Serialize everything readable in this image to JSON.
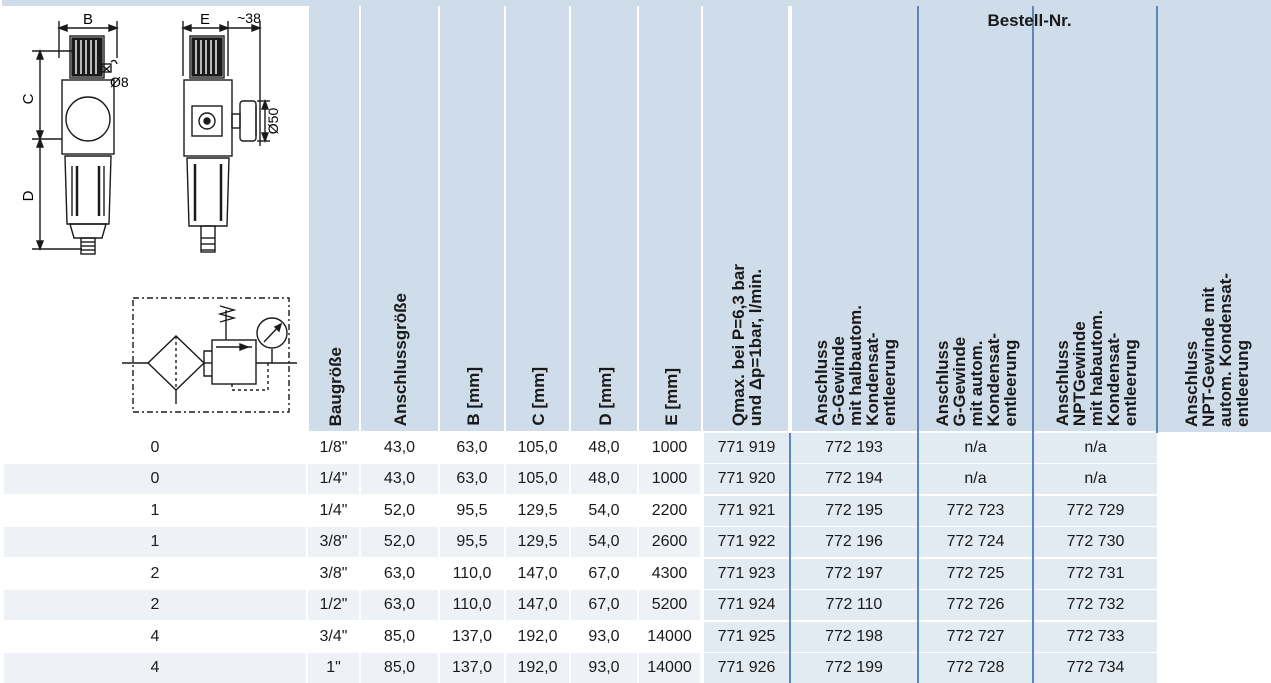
{
  "diagram": {
    "dim_b": "B",
    "dim_c": "C",
    "dim_d": "D",
    "dim_e": "E",
    "dim_38": "~38",
    "dim_d8": "Ø8",
    "dim_d50": "Ø50"
  },
  "headers": {
    "baugroesse": "Baugröße",
    "anschlussgroesse": "Anschlussgröße",
    "b": "B [mm]",
    "c": "C [mm]",
    "d": "D [mm]",
    "e": "E [mm]",
    "qmax": "Qmax. bei P=6,3 bar\nund Δp=1bar, l/min.",
    "bestell": "Bestell-Nr.",
    "order_g_half": "Anschluss\nG-Gewinde\nmit halbautom.\nKondensat-\nentleerung",
    "order_g_auto": "Anschluss\nG-Gewinde\nmit autom.\nKondensat-\nentleerung",
    "order_npt_half": "Anschluss\nNPTGewinde\nmit habautom.\nKondensat-\nentleerung",
    "order_npt_auto": "Anschluss\nNPT-Gewinde mit\nautom. Kondensat-\nentleerung"
  },
  "rows": [
    {
      "size": "0",
      "port": "1/8\"",
      "b": "43,0",
      "c": "63,0",
      "d": "105,0",
      "e": "48,0",
      "q": "1000",
      "o1": "771 919",
      "o2": "772 193",
      "o3": "n/a",
      "o4": "n/a"
    },
    {
      "size": "0",
      "port": "1/4\"",
      "b": "43,0",
      "c": "63,0",
      "d": "105,0",
      "e": "48,0",
      "q": "1000",
      "o1": "771 920",
      "o2": "772 194",
      "o3": "n/a",
      "o4": "n/a"
    },
    {
      "size": "1",
      "port": "1/4\"",
      "b": "52,0",
      "c": "95,5",
      "d": "129,5",
      "e": "54,0",
      "q": "2200",
      "o1": "771 921",
      "o2": "772 195",
      "o3": "772 723",
      "o4": "772 729"
    },
    {
      "size": "1",
      "port": "3/8\"",
      "b": "52,0",
      "c": "95,5",
      "d": "129,5",
      "e": "54,0",
      "q": "2600",
      "o1": "771 922",
      "o2": "772 196",
      "o3": "772 724",
      "o4": "772 730"
    },
    {
      "size": "2",
      "port": "3/8\"",
      "b": "63,0",
      "c": "110,0",
      "d": "147,0",
      "e": "67,0",
      "q": "4300",
      "o1": "771 923",
      "o2": "772 197",
      "o3": "772 725",
      "o4": "772 731"
    },
    {
      "size": "2",
      "port": "1/2\"",
      "b": "63,0",
      "c": "110,0",
      "d": "147,0",
      "e": "67,0",
      "q": "5200",
      "o1": "771 924",
      "o2": "772 110",
      "o3": "772 726",
      "o4": "772 732"
    },
    {
      "size": "4",
      "port": "3/4\"",
      "b": "85,0",
      "c": "137,0",
      "d": "192,0",
      "e": "93,0",
      "q": "14000",
      "o1": "771 925",
      "o2": "772 198",
      "o3": "772 727",
      "o4": "772 733"
    },
    {
      "size": "4",
      "port": "1\"",
      "b": "85,0",
      "c": "137,0",
      "d": "192,0",
      "e": "93,0",
      "q": "14000",
      "o1": "771 926",
      "o2": "772 199",
      "o3": "772 728",
      "o4": "772 734"
    }
  ],
  "colors": {
    "header_bg": "#cfdce9",
    "order_bg": "#e2eaf2",
    "divider": "#5a86b8"
  }
}
